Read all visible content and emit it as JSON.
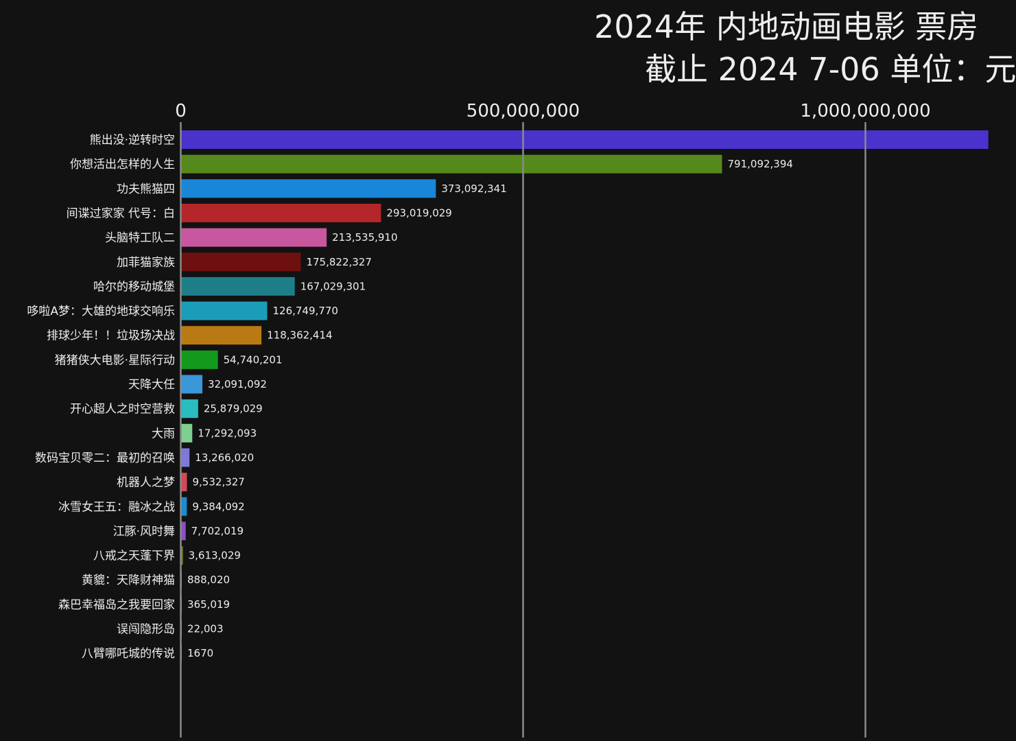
{
  "title": "2024年 内地动画电影 票房",
  "subtitle": "截止 2024 7-06 单位：元",
  "chart_data": {
    "type": "bar",
    "orientation": "horizontal",
    "title": "2024年 内地动画电影 票房",
    "subtitle": "截止 2024 7-06 单位：元",
    "xlabel": "",
    "ylabel": "",
    "xlim": [
      0,
      1180000000
    ],
    "grid": true,
    "x_ticks": [
      {
        "value": 0,
        "label": "0"
      },
      {
        "value": 500000000,
        "label": "500,000,000"
      },
      {
        "value": 1000000000,
        "label": "1,000,000,000"
      }
    ],
    "categories": [
      "熊出没·逆转时空",
      "你想活出怎样的人生",
      "功夫熊猫四",
      "间谍过家家 代号：白",
      "头脑特工队二",
      "加菲猫家族",
      "哈尔的移动城堡",
      "哆啦A梦：大雄的地球交响乐",
      "排球少年！！垃圾场决战",
      "猪猪侠大电影·星际行动",
      "天降大任",
      "开心超人之时空营救",
      "大雨",
      "数码宝贝零二：最初的召唤",
      "机器人之梦",
      "冰雪女王五：融冰之战",
      "江豚·风时舞",
      "八戒之天蓬下界",
      "黄貔：天降财神猫",
      "森巴幸福岛之我要回家",
      "误闯隐形岛",
      "八臂哪吒城的传说"
    ],
    "values": [
      1180000000,
      791092394,
      373092341,
      293019029,
      213535910,
      175822327,
      167029301,
      126749770,
      118362414,
      54740201,
      32091092,
      25879029,
      17292093,
      13266020,
      9532327,
      9384092,
      7702019,
      3613029,
      888020,
      365019,
      22003,
      1670
    ],
    "value_labels": [
      "",
      "791,092,394",
      "373,092,341",
      "293,019,029",
      "213,535,910",
      "175,822,327",
      "167,029,301",
      "126,749,770",
      "118,362,414",
      "54,740,201",
      "32,091,092",
      "25,879,029",
      "17,292,093",
      "13,266,020",
      "9,532,327",
      "9,384,092",
      "7,702,019",
      "3,613,029",
      "888,020",
      "365,019",
      "22,003",
      "1670"
    ],
    "colors": [
      "#4a33cc",
      "#56891c",
      "#1a86d8",
      "#b5262b",
      "#c9579f",
      "#6e1010",
      "#1e7e88",
      "#1b9db9",
      "#b97a14",
      "#139a1c",
      "#3a98d6",
      "#2bbcc0",
      "#7fd08f",
      "#7e7ad8",
      "#d04a57",
      "#1e8ad0",
      "#8d4fc8",
      "#7d7d2a",
      "#7a7a7a",
      "#7a7a7a",
      "#7a7a7a",
      "#7a7a7a"
    ]
  }
}
